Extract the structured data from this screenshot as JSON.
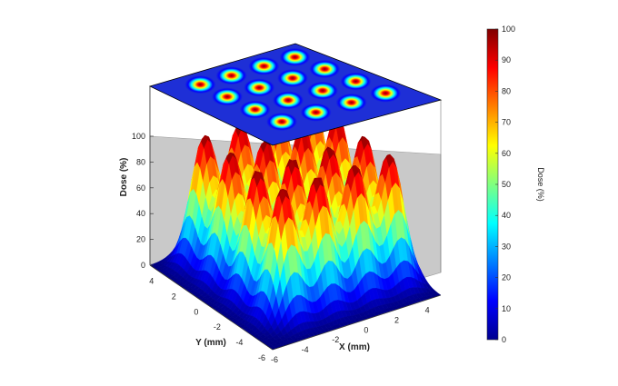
{
  "chart_data": {
    "type": "surface3d",
    "description_source": "dose distribution of a 4x4 grid of gaussian peaks with a projected top-view heatmap",
    "z_axis": {
      "label": "Dose (%)",
      "range": [
        0,
        100
      ],
      "ticks": [
        "0",
        "20",
        "40",
        "60",
        "80",
        "100"
      ]
    },
    "x_axis": {
      "label": "X (mm)",
      "range": [
        -6,
        5
      ],
      "ticks": [
        "-6",
        "-4",
        "-2",
        "0",
        "2",
        "4"
      ]
    },
    "y_axis": {
      "label": "Y (mm)",
      "range": [
        -6,
        5
      ],
      "ticks": [
        "-6",
        "-4",
        "-2",
        "0",
        "2",
        "4"
      ]
    },
    "colorbar": {
      "label": "Dose (%)",
      "range": [
        0,
        100
      ],
      "ticks": [
        "0",
        "10",
        "20",
        "30",
        "40",
        "50",
        "60",
        "70",
        "80",
        "90",
        "100"
      ],
      "colormap": "jet"
    },
    "peaks": {
      "grid_x": [
        -3.5,
        -1.2,
        1.2,
        3.5
      ],
      "grid_y": [
        -3.5,
        -1.2,
        1.2,
        3.5
      ],
      "peak_value": 100,
      "sigma_mm": 0.75
    },
    "top_heatmap": {
      "shown": true,
      "spots": 16
    }
  }
}
